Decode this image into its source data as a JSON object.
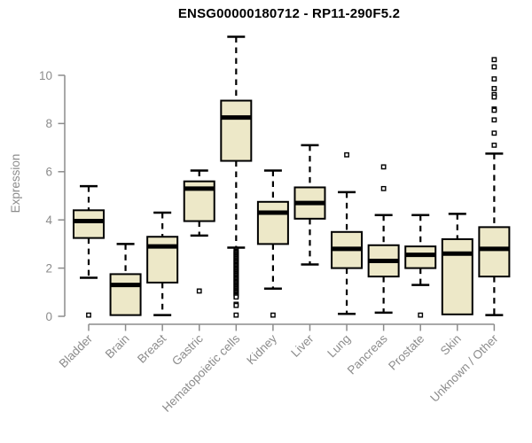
{
  "chart_data": {
    "type": "boxplot",
    "title": "ENSG00000180712 - RP11-290F5.2",
    "xlabel": "",
    "ylabel": "Expression",
    "yticks": [
      0,
      2,
      4,
      6,
      8,
      10
    ],
    "ylim": [
      0,
      11.8
    ],
    "grid": false,
    "legend": "none",
    "categories": [
      "Bladder",
      "Brain",
      "Breast",
      "Gastric",
      "Hematopoietic cells",
      "Kidney",
      "Liver",
      "Lung",
      "Pancreas",
      "Prostate",
      "Skin",
      "Unknown / Other"
    ],
    "series": [
      {
        "category": "Bladder",
        "whisker_low": 1.6,
        "q1": 3.25,
        "median": 3.95,
        "q3": 4.4,
        "whisker_high": 5.4,
        "outliers": [
          0.05
        ]
      },
      {
        "category": "Brain",
        "whisker_low": 0.05,
        "q1": 0.05,
        "median": 1.3,
        "q3": 1.75,
        "whisker_high": 3.0,
        "outliers": []
      },
      {
        "category": "Breast",
        "whisker_low": 0.05,
        "q1": 1.4,
        "median": 2.9,
        "q3": 3.3,
        "whisker_high": 4.3,
        "outliers": []
      },
      {
        "category": "Gastric",
        "whisker_low": 3.35,
        "q1": 3.95,
        "median": 5.3,
        "q3": 5.6,
        "whisker_high": 6.05,
        "outliers": [
          1.05
        ]
      },
      {
        "category": "Hematopoietic cells",
        "whisker_low": 2.85,
        "q1": 6.45,
        "median": 8.25,
        "q3": 8.95,
        "whisker_high": 11.6,
        "outliers": [
          2.75,
          2.7,
          2.65,
          2.6,
          2.55,
          2.5,
          2.45,
          2.4,
          2.35,
          2.3,
          2.25,
          2.2,
          2.15,
          2.1,
          2.05,
          2.0,
          1.95,
          1.9,
          1.85,
          1.8,
          1.75,
          1.7,
          1.65,
          1.6,
          1.55,
          1.5,
          1.45,
          1.4,
          1.35,
          1.3,
          1.25,
          1.2,
          1.15,
          1.1,
          1.05,
          1.0,
          0.95,
          0.9,
          0.85,
          0.8,
          0.5,
          0.45,
          0.05
        ]
      },
      {
        "category": "Kidney",
        "whisker_low": 1.15,
        "q1": 3.0,
        "median": 4.3,
        "q3": 4.75,
        "whisker_high": 6.05,
        "outliers": [
          0.05
        ]
      },
      {
        "category": "Liver",
        "whisker_low": 2.15,
        "q1": 4.05,
        "median": 4.7,
        "q3": 5.35,
        "whisker_high": 7.1,
        "outliers": []
      },
      {
        "category": "Lung",
        "whisker_low": 0.1,
        "q1": 2.0,
        "median": 2.8,
        "q3": 3.5,
        "whisker_high": 5.15,
        "outliers": [
          6.7
        ]
      },
      {
        "category": "Pancreas",
        "whisker_low": 0.15,
        "q1": 1.65,
        "median": 2.3,
        "q3": 2.95,
        "whisker_high": 4.2,
        "outliers": [
          6.2,
          5.3
        ]
      },
      {
        "category": "Prostate",
        "whisker_low": 1.3,
        "q1": 2.0,
        "median": 2.55,
        "q3": 2.9,
        "whisker_high": 4.2,
        "outliers": [
          0.05
        ]
      },
      {
        "category": "Skin",
        "whisker_low": 0.08,
        "q1": 0.08,
        "median": 2.6,
        "q3": 3.2,
        "whisker_high": 4.25,
        "outliers": []
      },
      {
        "category": "Unknown / Other",
        "whisker_low": 0.05,
        "q1": 1.65,
        "median": 2.8,
        "q3": 3.7,
        "whisker_high": 6.75,
        "outliers": [
          10.65,
          10.35,
          9.85,
          9.45,
          9.2,
          9.1,
          8.6,
          8.55,
          8.15,
          7.6,
          7.1
        ]
      }
    ],
    "colors": {
      "box_fill": "#EDE8C8",
      "box_border": "#000000",
      "median": "#000000",
      "whisker": "#000000",
      "outlier_stroke": "#000000",
      "outlier_fill": "#FFFFFF",
      "axis": "#8C8C8C",
      "tick_label": "#8C8C8C",
      "title": "#000000",
      "background": "#FFFFFF"
    }
  }
}
